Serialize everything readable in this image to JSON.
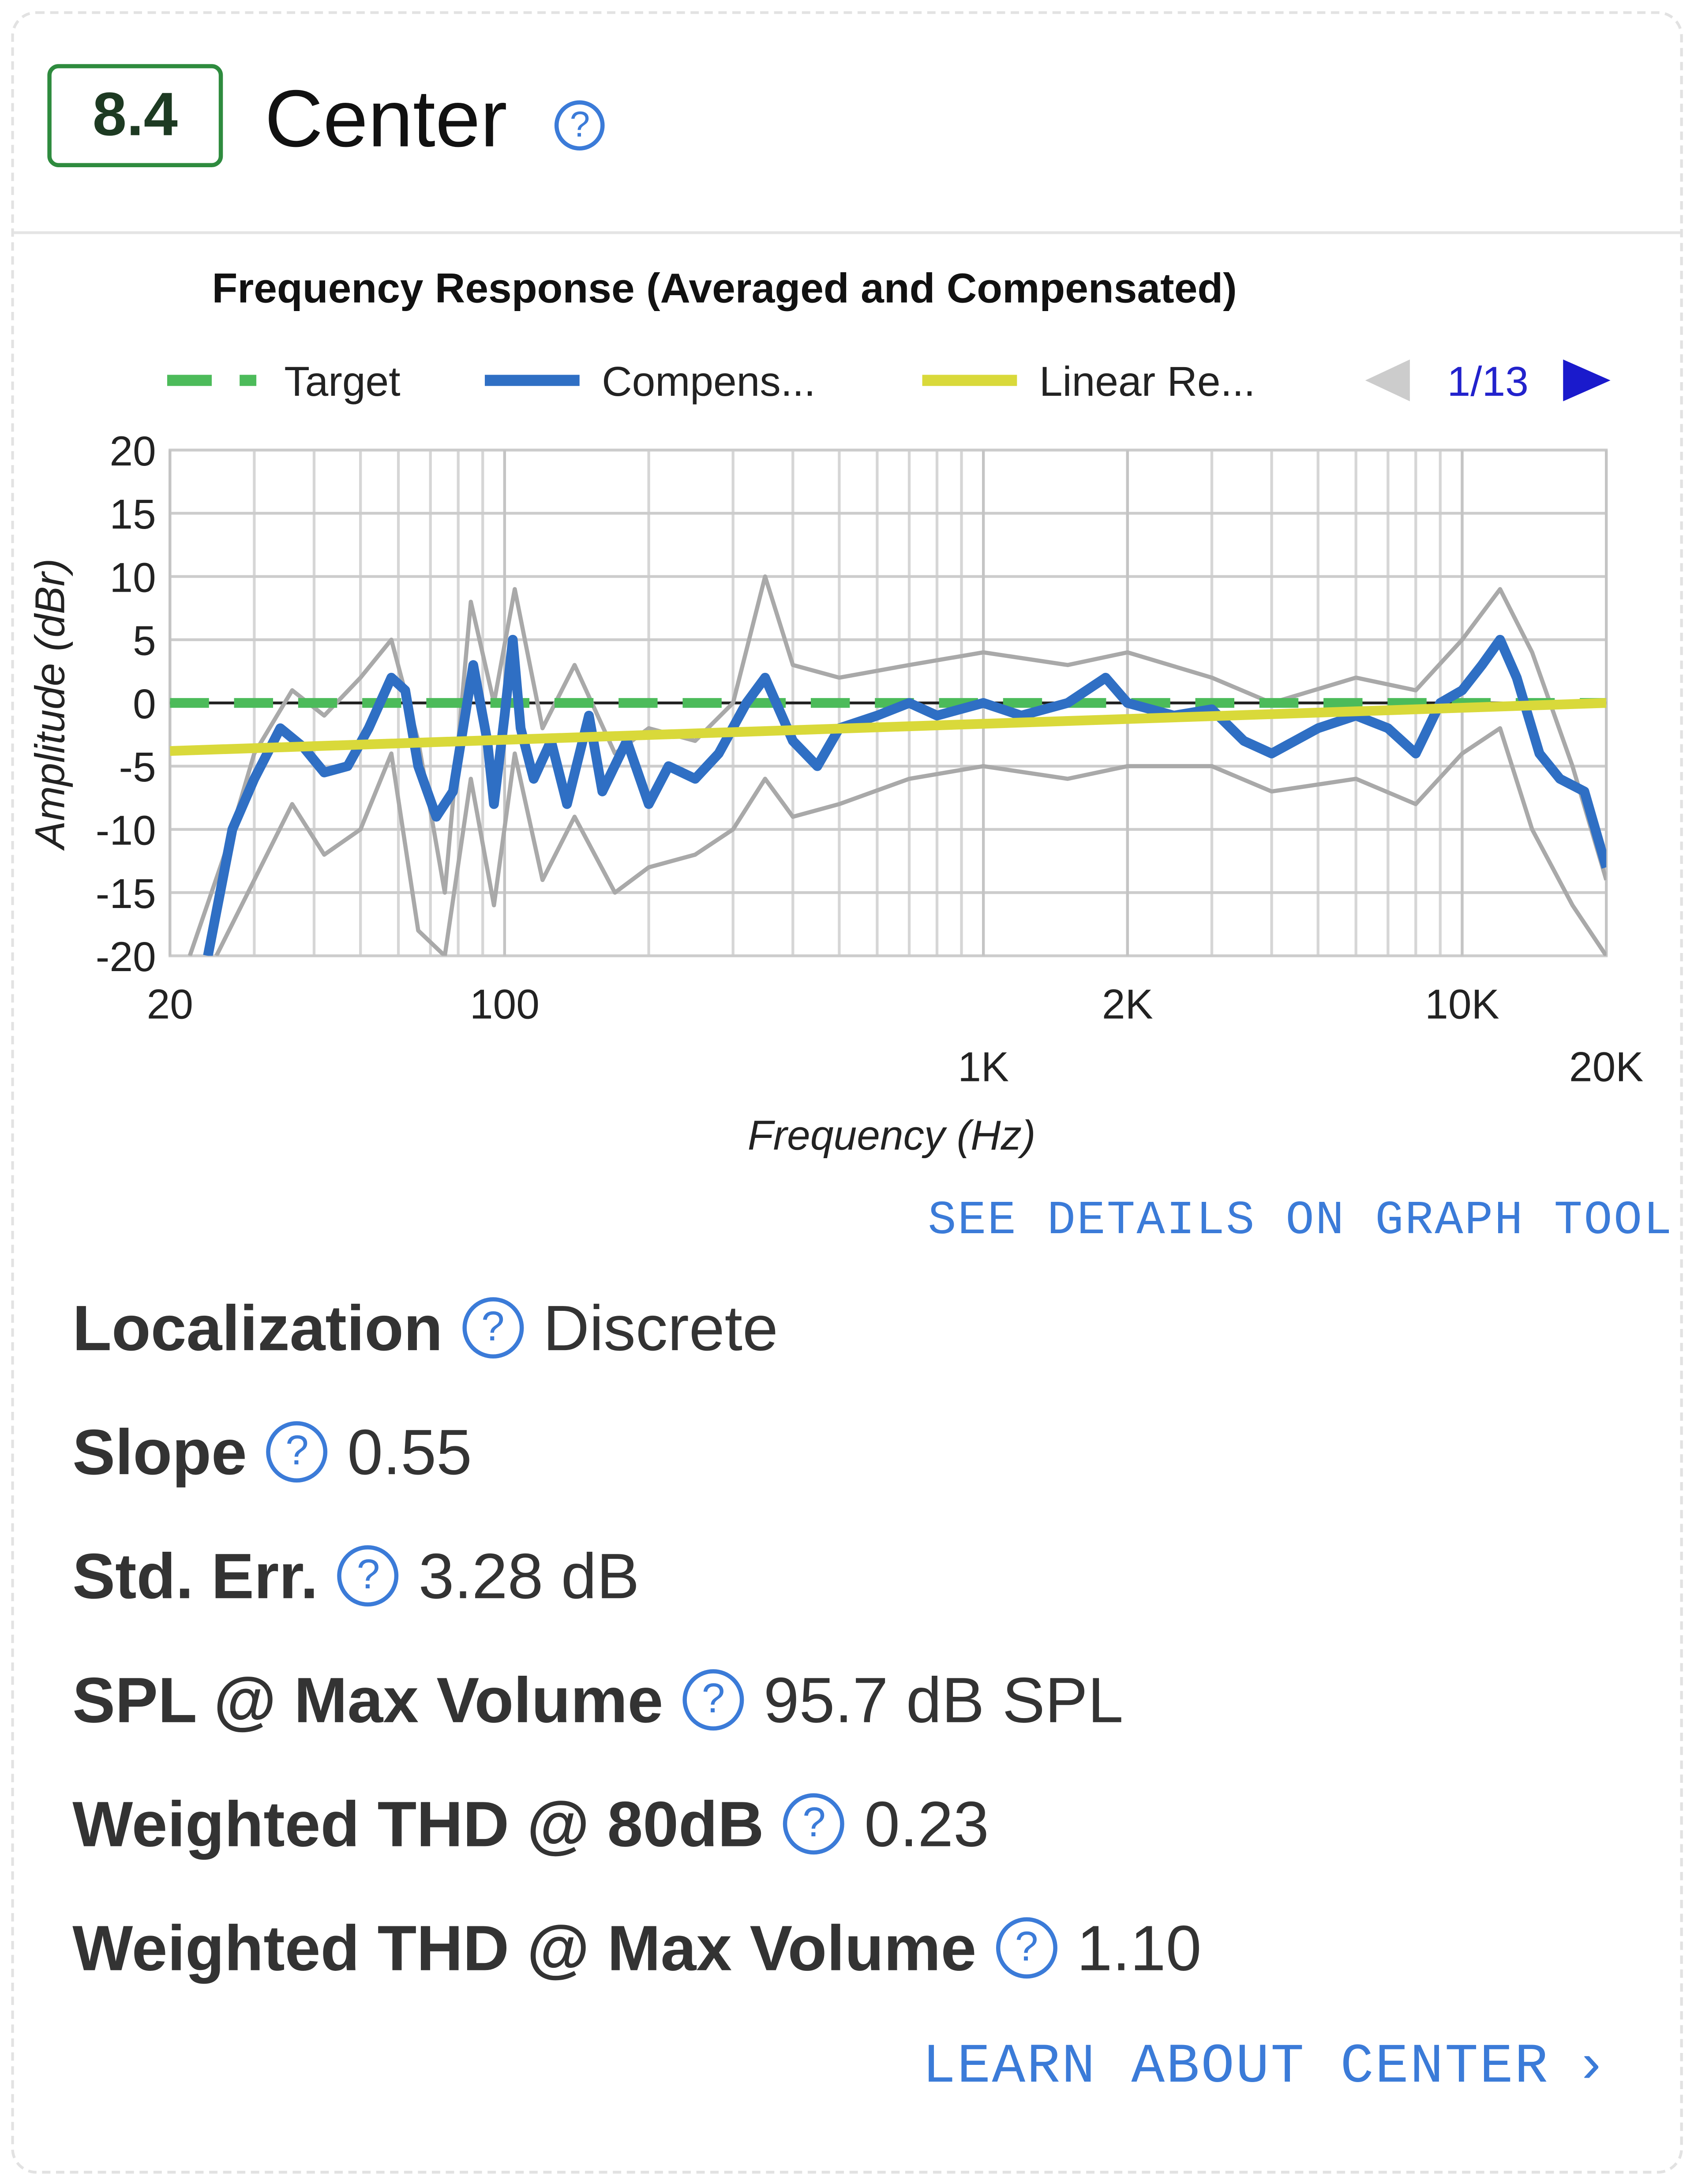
{
  "score": "8.4",
  "title": "Center",
  "chart": {
    "type": "line",
    "title": "Frequency Response (Averaged and Compensated)",
    "xlabel": "Frequency (Hz)",
    "ylabel": "Amplitude (dBr)",
    "xscale": "log",
    "grid": true,
    "page": "1/13",
    "xlim": [
      20,
      20000
    ],
    "ylim": [
      -20,
      20
    ],
    "xticks": [
      20,
      100,
      {
        "value": 1000,
        "label": "1K"
      },
      {
        "value": 2000,
        "label": "2K"
      },
      {
        "value": 10000,
        "label": "10K"
      },
      {
        "value": 20000,
        "label": "20K"
      }
    ],
    "yticks": [
      20,
      15,
      10,
      5,
      0,
      -5,
      -10,
      -15,
      -20
    ],
    "series": [
      {
        "color": "#a9a9a9",
        "x": [
          22,
          26,
          30,
          36,
          42,
          50,
          58,
          66,
          75,
          85,
          95,
          105,
          120,
          140,
          170,
          200,
          250,
          300,
          350,
          400,
          500,
          700,
          1000,
          1500,
          2000,
          3000,
          4000,
          6000,
          8000,
          10000,
          12000,
          14000,
          17000,
          20000
        ],
        "values": [
          -20,
          -12,
          -4,
          1,
          -1,
          2,
          5,
          -3,
          -15,
          8,
          0,
          9,
          -2,
          3,
          -4,
          -2,
          -3,
          0,
          10,
          3,
          2,
          3,
          4,
          3,
          4,
          2,
          0,
          2,
          1,
          5,
          9,
          4,
          -5,
          -14
        ]
      },
      {
        "color": "#a9a9a9",
        "x": [
          25,
          30,
          36,
          42,
          50,
          58,
          66,
          75,
          85,
          95,
          105,
          120,
          140,
          170,
          200,
          250,
          300,
          350,
          400,
          500,
          700,
          1000,
          1500,
          2000,
          3000,
          4000,
          6000,
          8000,
          10000,
          12000,
          14000,
          17000,
          20000
        ],
        "values": [
          -20,
          -14,
          -8,
          -12,
          -10,
          -4,
          -18,
          -20,
          -6,
          -16,
          -4,
          -14,
          -9,
          -15,
          -13,
          -12,
          -10,
          -6,
          -9,
          -8,
          -6,
          -5,
          -6,
          -5,
          -5,
          -7,
          -6,
          -8,
          -4,
          -2,
          -10,
          -16,
          -20
        ]
      },
      {
        "name": "Target",
        "color": "#4cbb5a",
        "x": [
          20,
          20000
        ],
        "values": [
          0,
          0
        ]
      },
      {
        "name": "Compens...",
        "color": "#2f6fc4",
        "x": [
          24,
          27,
          30,
          34,
          38,
          42,
          47,
          52,
          58,
          62,
          66,
          72,
          78,
          86,
          92,
          95,
          100,
          104,
          108,
          115,
          125,
          135,
          150,
          160,
          180,
          200,
          220,
          250,
          280,
          320,
          350,
          400,
          450,
          500,
          600,
          700,
          800,
          1000,
          1200,
          1500,
          1800,
          2000,
          2500,
          3000,
          3500,
          4000,
          5000,
          6000,
          7000,
          8000,
          9000,
          10000,
          11000,
          12000,
          13000,
          14500,
          16000,
          18000,
          20000
        ],
        "values": [
          -20,
          -10,
          -6,
          -2,
          -3.5,
          -5.5,
          -5,
          -2,
          2,
          1,
          -5,
          -9,
          -7,
          3,
          -3,
          -8,
          -1,
          5,
          -2,
          -6,
          -3,
          -8,
          -1,
          -7,
          -3,
          -8,
          -5,
          -6,
          -4,
          0,
          2,
          -3,
          -5,
          -2,
          -1,
          0,
          -1,
          0,
          -1,
          0,
          2,
          0,
          -1,
          -0.5,
          -3,
          -4,
          -2,
          -1,
          -2,
          -4,
          0,
          1,
          3,
          5,
          2,
          -4,
          -6,
          -7,
          -13
        ]
      },
      {
        "name": "Linear Re...",
        "color": "#d9d93a",
        "x": [
          20,
          20000
        ],
        "values": [
          -3.8,
          0
        ]
      }
    ]
  },
  "details_link": "SEE DETAILS ON GRAPH TOOL",
  "metrics": [
    {
      "label": "Localization",
      "value": "Discrete"
    },
    {
      "label": "Slope",
      "value": "0.55"
    },
    {
      "label": "Std. Err.",
      "value": "3.28 dB"
    },
    {
      "label": "SPL @ Max Volume",
      "value": "95.7 dB SPL"
    },
    {
      "label": "Weighted THD @ 80dB",
      "value": "0.23"
    },
    {
      "label": "Weighted THD @ Max Volume",
      "value": "1.10"
    }
  ],
  "learn_link": "LEARN ABOUT CENTER"
}
